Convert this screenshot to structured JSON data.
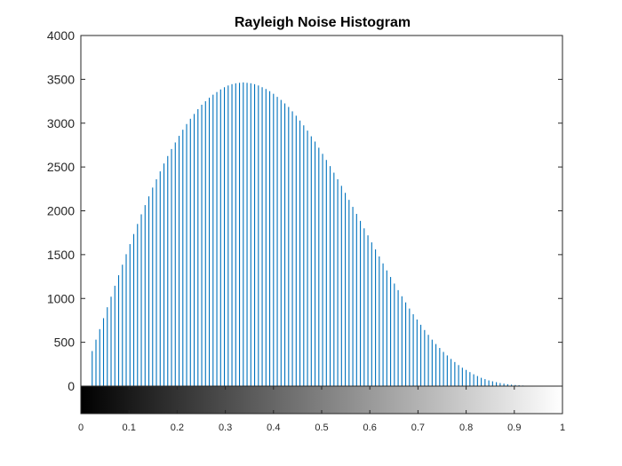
{
  "chart_data": {
    "type": "bar",
    "title": "Rayleigh Noise Histogram",
    "xlabel": "",
    "ylabel": "",
    "xlim": [
      0,
      1
    ],
    "ylim": [
      0,
      4000
    ],
    "yticks": [
      0,
      500,
      1000,
      1500,
      2000,
      2500,
      3000,
      3500,
      4000
    ],
    "xticks": [
      0,
      0.1,
      0.2,
      0.3,
      0.4,
      0.5,
      0.6,
      0.7,
      0.8,
      0.9,
      1
    ],
    "ytick_labels": [
      "0",
      "500",
      "1000",
      "1500",
      "2000",
      "2500",
      "3000",
      "3500",
      "4000"
    ],
    "xtick_labels": [
      "0",
      "0.1",
      "0.2",
      "0.3",
      "0.4",
      "0.5",
      "0.6",
      "0.7",
      "0.8",
      "0.9",
      "1"
    ],
    "grid": false,
    "bar_color": "#0072bd",
    "colorbar": {
      "type": "grayscale",
      "from_color": "#000000",
      "to_color": "#ffffff"
    },
    "bin_step": 0.00392157,
    "values": [
      0,
      0,
      0,
      0,
      0,
      0,
      400,
      0,
      530,
      0,
      650,
      0,
      775,
      0,
      900,
      0,
      1020,
      0,
      1145,
      0,
      1265,
      0,
      1385,
      0,
      1505,
      0,
      1620,
      0,
      1735,
      0,
      1850,
      0,
      1960,
      0,
      2065,
      0,
      2165,
      0,
      2265,
      0,
      2360,
      0,
      2450,
      0,
      2540,
      0,
      2625,
      0,
      2705,
      0,
      2780,
      0,
      2855,
      0,
      2925,
      0,
      2990,
      0,
      3050,
      0,
      3105,
      0,
      3160,
      0,
      3210,
      0,
      3250,
      0,
      3290,
      0,
      3325,
      0,
      3355,
      0,
      3385,
      0,
      3410,
      0,
      3430,
      0,
      3445,
      0,
      3455,
      0,
      3460,
      0,
      3465,
      0,
      3460,
      0,
      3455,
      0,
      3445,
      0,
      3430,
      0,
      3410,
      0,
      3390,
      0,
      3365,
      0,
      3335,
      0,
      3300,
      0,
      3265,
      0,
      3225,
      0,
      3185,
      0,
      3135,
      0,
      3085,
      0,
      3030,
      0,
      2975,
      0,
      2915,
      0,
      2850,
      0,
      2790,
      0,
      2720,
      0,
      2650,
      0,
      2580,
      0,
      2510,
      0,
      2435,
      0,
      2360,
      0,
      2285,
      0,
      2205,
      0,
      2125,
      0,
      2045,
      0,
      1965,
      0,
      1885,
      0,
      1800,
      0,
      1720,
      0,
      1640,
      0,
      1560,
      0,
      1480,
      0,
      1400,
      0,
      1320,
      0,
      1245,
      0,
      1170,
      0,
      1095,
      0,
      1025,
      0,
      955,
      0,
      885,
      0,
      820,
      0,
      760,
      0,
      700,
      0,
      640,
      0,
      585,
      0,
      530,
      0,
      480,
      0,
      435,
      0,
      390,
      0,
      350,
      0,
      310,
      0,
      275,
      0,
      240,
      0,
      210,
      0,
      185,
      0,
      160,
      0,
      135,
      0,
      115,
      0,
      95,
      0,
      80,
      0,
      65,
      0,
      55,
      0,
      45,
      0,
      35,
      0,
      28,
      0,
      22,
      0,
      17,
      0,
      13,
      0,
      10,
      0,
      7,
      0,
      5,
      0,
      4,
      0,
      3,
      0,
      2,
      0,
      1,
      0,
      1,
      0,
      0,
      0,
      0,
      0,
      0,
      0,
      0,
      0,
      0,
      0,
      0,
      0,
      0,
      0,
      0,
      0,
      0,
      0,
      0,
      0,
      0,
      0,
      0,
      0,
      0,
      0,
      0,
      0,
      0,
      0,
      0,
      0,
      0,
      0,
      0,
      0,
      0,
      0,
      0,
      0,
      0,
      0,
      0,
      0,
      0,
      0,
      0,
      0
    ]
  }
}
